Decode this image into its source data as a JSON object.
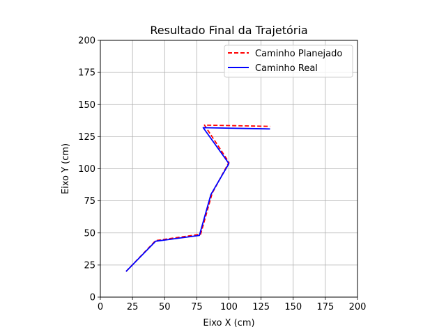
{
  "chart_data": {
    "type": "line",
    "title": "Resultado Final da Trajetória",
    "xlabel": "Eixo X (cm)",
    "ylabel": "Eixo Y (cm)",
    "xlim": [
      0,
      200
    ],
    "ylim": [
      0,
      200
    ],
    "xticks": [
      0,
      25,
      50,
      75,
      100,
      125,
      150,
      175,
      200
    ],
    "yticks": [
      0,
      25,
      50,
      75,
      100,
      125,
      150,
      175,
      200
    ],
    "grid": true,
    "legend_position": "top-right",
    "series": [
      {
        "name": "Caminho Planejado",
        "color": "#ff0000",
        "style": "dashed",
        "x": [
          20,
          43,
          78,
          87,
          100,
          81,
          132
        ],
        "y": [
          20,
          44,
          49,
          81,
          105,
          134,
          133
        ]
      },
      {
        "name": "Caminho Real",
        "color": "#0000ff",
        "style": "solid",
        "x": [
          20,
          43,
          77,
          86,
          100,
          80,
          132
        ],
        "y": [
          20,
          43.5,
          48,
          80,
          104,
          132,
          131
        ]
      }
    ]
  }
}
